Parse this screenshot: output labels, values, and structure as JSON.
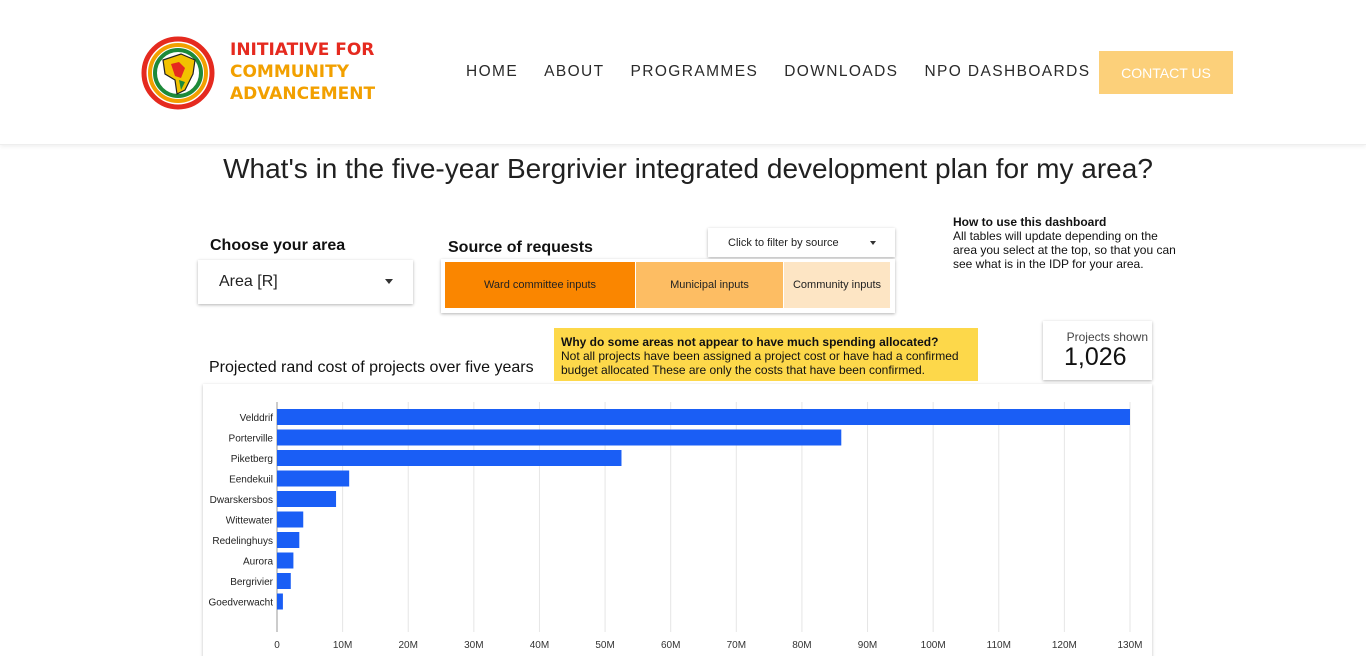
{
  "header": {
    "logo_lines": [
      "INITIATIVE FOR",
      "COMMUNITY",
      "ADVANCEMENT"
    ],
    "nav": [
      "HOME",
      "ABOUT",
      "PROGRAMMES",
      "DOWNLOADS",
      "NPO DASHBOARDS"
    ],
    "contact_label": "CONTACT US"
  },
  "dashboard": {
    "title": "What's in the five-year Bergrivier integrated development plan for my area?",
    "choose_label": "Choose your area",
    "area_value": "Area [R]",
    "source_label": "Source of requests",
    "filter_label": "Click to filter by source",
    "sources": [
      {
        "label": "Ward committee inputs",
        "color": "#fa8600"
      },
      {
        "label": "Municipal inputs",
        "color": "#fdbd63"
      },
      {
        "label": "Community inputs",
        "color": "#fde5c4"
      }
    ],
    "howto_heading": "How to use this dashboard",
    "howto_body": "All tables will update depending on the area you select at the top, so that you can see what is in the IDP for your area.",
    "chart_label": "Projected rand cost of projects over five years",
    "notice_heading": "Why do some areas not appear to have much spending allocated?",
    "notice_body": "Not all projects have been assigned a project cost or have had a confirmed budget allocated These are only the costs that have been confirmed.",
    "kpi_label": "Projects shown",
    "kpi_value": "1,026"
  },
  "colors": {
    "bar": "#1a5ef5",
    "contact_button": "#fcd07a",
    "notice": "#fdd84a"
  },
  "chart_data": {
    "type": "bar",
    "orientation": "horizontal",
    "categories": [
      "Velddrif",
      "Porterville",
      "Piketberg",
      "Eendekuil",
      "Dwarskersbos",
      "Wittewater",
      "Redelinghuys",
      "Aurora",
      "Bergrivier",
      "Goedverwacht"
    ],
    "values": [
      130000000,
      86000000,
      52500000,
      11000000,
      9000000,
      4000000,
      3400000,
      2500000,
      2100000,
      900000
    ],
    "xticks": [
      "0",
      "10M",
      "20M",
      "30M",
      "40M",
      "50M",
      "60M",
      "70M",
      "80M",
      "90M",
      "100M",
      "110M",
      "120M",
      "130M"
    ],
    "xlim": [
      0,
      130000000
    ],
    "grid": true
  }
}
